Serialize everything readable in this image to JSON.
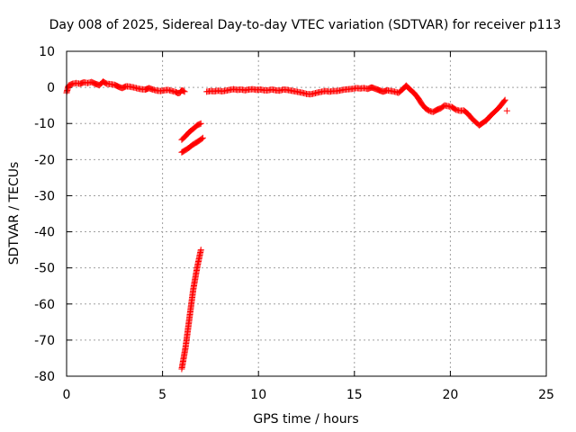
{
  "chart_data": {
    "type": "scatter",
    "title": "Day 008 of 2025, Sidereal Day-to-day VTEC variation (SDTVAR) for receiver p113",
    "xlabel": "GPS time / hours",
    "ylabel": "SDTVAR / TECUs",
    "xlim": [
      0,
      25
    ],
    "ylim": [
      -80,
      10
    ],
    "xticks": [
      0,
      5,
      10,
      15,
      20,
      25
    ],
    "yticks": [
      10,
      0,
      -10,
      -20,
      -30,
      -40,
      -50,
      -60,
      -70,
      -80
    ],
    "grid": true,
    "marker": "+",
    "series": [
      {
        "name": "SDTVAR",
        "color": "#ff0000",
        "segments": [
          [
            [
              0.0,
              -1.5
            ],
            [
              0.1,
              0.5
            ],
            [
              0.3,
              1.0
            ],
            [
              0.5,
              1.2
            ],
            [
              0.7,
              1.0
            ],
            [
              0.9,
              1.4
            ],
            [
              1.1,
              1.2
            ],
            [
              1.3,
              1.5
            ],
            [
              1.5,
              1.0
            ],
            [
              1.7,
              0.6
            ],
            [
              1.9,
              1.6
            ],
            [
              2.1,
              1.0
            ],
            [
              2.3,
              0.9
            ],
            [
              2.5,
              0.7
            ],
            [
              2.7,
              0.2
            ],
            [
              2.9,
              -0.2
            ],
            [
              3.1,
              0.3
            ],
            [
              3.3,
              0.2
            ],
            [
              3.5,
              0.0
            ],
            [
              3.7,
              -0.3
            ],
            [
              3.9,
              -0.5
            ],
            [
              4.1,
              -0.6
            ],
            [
              4.3,
              -0.2
            ],
            [
              4.5,
              -0.6
            ],
            [
              4.7,
              -0.9
            ],
            [
              4.9,
              -1.0
            ],
            [
              5.1,
              -0.8
            ],
            [
              5.3,
              -0.7
            ],
            [
              5.5,
              -1.0
            ],
            [
              5.7,
              -1.3
            ],
            [
              5.8,
              -1.6
            ],
            [
              5.9,
              -1.5
            ],
            [
              6.0,
              -0.8
            ],
            [
              6.1,
              -1.0
            ],
            [
              6.15,
              -1.2
            ]
          ],
          [
            [
              6.0,
              -14.5
            ],
            [
              6.2,
              -13.5
            ],
            [
              6.4,
              -12.3
            ],
            [
              6.6,
              -11.5
            ],
            [
              6.8,
              -10.5
            ],
            [
              7.0,
              -10.0
            ]
          ],
          [
            [
              6.0,
              -18.0
            ],
            [
              6.3,
              -17.0
            ],
            [
              6.6,
              -15.8
            ],
            [
              6.9,
              -14.8
            ],
            [
              7.1,
              -14.0
            ]
          ],
          [
            [
              6.0,
              -78.0
            ],
            [
              6.2,
              -72.0
            ],
            [
              6.4,
              -64.0
            ],
            [
              6.6,
              -56.0
            ],
            [
              6.8,
              -50.0
            ],
            [
              7.0,
              -45.0
            ]
          ],
          [
            [
              7.3,
              -1.2
            ],
            [
              7.5,
              -1.0
            ],
            [
              7.7,
              -1.1
            ],
            [
              7.9,
              -0.9
            ],
            [
              8.1,
              -1.1
            ],
            [
              8.3,
              -0.9
            ],
            [
              8.5,
              -0.7
            ],
            [
              8.7,
              -0.5
            ],
            [
              8.9,
              -0.7
            ],
            [
              9.1,
              -0.6
            ],
            [
              9.3,
              -0.8
            ],
            [
              9.5,
              -0.6
            ],
            [
              9.7,
              -0.5
            ],
            [
              9.9,
              -0.7
            ],
            [
              10.1,
              -0.6
            ],
            [
              10.3,
              -0.8
            ],
            [
              10.5,
              -0.8
            ],
            [
              10.7,
              -0.6
            ],
            [
              10.9,
              -0.8
            ],
            [
              11.1,
              -0.9
            ],
            [
              11.3,
              -0.6
            ],
            [
              11.5,
              -0.7
            ],
            [
              11.7,
              -0.9
            ],
            [
              11.9,
              -1.1
            ],
            [
              12.1,
              -1.3
            ],
            [
              12.3,
              -1.5
            ],
            [
              12.5,
              -1.8
            ],
            [
              12.7,
              -1.9
            ],
            [
              12.9,
              -1.7
            ],
            [
              13.1,
              -1.4
            ],
            [
              13.3,
              -1.2
            ],
            [
              13.5,
              -1.0
            ],
            [
              13.7,
              -1.2
            ],
            [
              13.9,
              -1.0
            ],
            [
              14.1,
              -1.0
            ],
            [
              14.3,
              -0.8
            ],
            [
              14.5,
              -0.6
            ],
            [
              14.7,
              -0.5
            ],
            [
              14.9,
              -0.4
            ],
            [
              15.1,
              -0.2
            ],
            [
              15.3,
              -0.3
            ],
            [
              15.5,
              -0.2
            ],
            [
              15.7,
              -0.4
            ],
            [
              15.9,
              0.0
            ],
            [
              16.1,
              -0.4
            ],
            [
              16.3,
              -0.8
            ],
            [
              16.5,
              -1.2
            ],
            [
              16.7,
              -0.8
            ],
            [
              16.9,
              -1.0
            ],
            [
              17.1,
              -1.2
            ],
            [
              17.3,
              -1.5
            ],
            [
              17.5,
              -0.6
            ],
            [
              17.7,
              0.5
            ],
            [
              17.9,
              -0.6
            ],
            [
              18.1,
              -1.5
            ],
            [
              18.3,
              -2.8
            ],
            [
              18.5,
              -4.5
            ],
            [
              18.7,
              -5.8
            ],
            [
              18.9,
              -6.5
            ],
            [
              19.1,
              -6.8
            ],
            [
              19.3,
              -6.2
            ],
            [
              19.5,
              -5.8
            ],
            [
              19.7,
              -5.0
            ],
            [
              19.9,
              -5.2
            ],
            [
              20.1,
              -5.5
            ],
            [
              20.3,
              -6.2
            ],
            [
              20.5,
              -6.5
            ],
            [
              20.7,
              -6.4
            ],
            [
              20.9,
              -7.2
            ],
            [
              21.1,
              -8.5
            ],
            [
              21.3,
              -9.5
            ],
            [
              21.5,
              -10.5
            ],
            [
              21.7,
              -9.8
            ],
            [
              21.9,
              -9.0
            ],
            [
              22.1,
              -7.8
            ],
            [
              22.3,
              -6.8
            ],
            [
              22.5,
              -5.8
            ],
            [
              22.7,
              -4.5
            ],
            [
              22.85,
              -3.5
            ]
          ]
        ],
        "outliers": [
          [
            22.95,
            -6.5
          ]
        ]
      }
    ]
  }
}
